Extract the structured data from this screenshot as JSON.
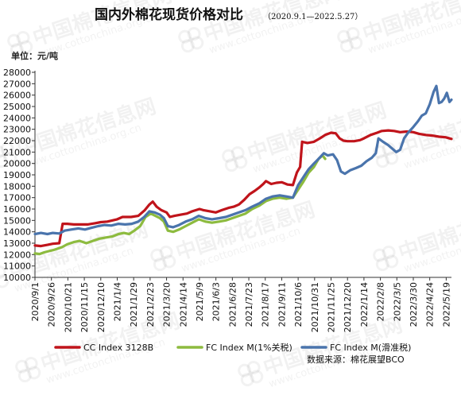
{
  "chart_data": {
    "type": "line",
    "title": "国内外棉花现货价格对比",
    "subtitle": "（2020.9.1—2022.5.27）",
    "ylabel": "单位：元/吨",
    "ylim": [
      10000,
      28000
    ],
    "ytick_step": 1000,
    "xlim": [
      "2020-09-01",
      "2022-05-27"
    ],
    "grid": false,
    "legend_position": "bottom",
    "source": "数据来源：棉花展望BCO",
    "watermark": {
      "brand": "中国棉花信息网",
      "url": "www.cottonchina.org.cn"
    },
    "x_tick_labels": [
      "2020/9/1",
      "2020/9/26",
      "2020/10/21",
      "2020/11/15",
      "2020/12/10",
      "2021/1/4",
      "2021/1/29",
      "2021/2/23",
      "2021/3/20",
      "2021/4/14",
      "2021/5/9",
      "2021/6/3",
      "2021/6/28",
      "2021/7/23",
      "2021/8/17",
      "2021/9/11",
      "2021/10/6",
      "2021/10/31",
      "2021/11/25",
      "2021/12/20",
      "2022/1/14",
      "2022/2/8",
      "2022/3/5",
      "2022/3/30",
      "2022/4/24",
      "2022/5/19"
    ],
    "x_tick_dates": [
      "2020-09-01",
      "2020-09-26",
      "2020-10-21",
      "2020-11-15",
      "2020-12-10",
      "2021-01-04",
      "2021-01-29",
      "2021-02-23",
      "2021-03-20",
      "2021-04-14",
      "2021-05-09",
      "2021-06-03",
      "2021-06-28",
      "2021-07-23",
      "2021-08-17",
      "2021-09-11",
      "2021-10-06",
      "2021-10-31",
      "2021-11-25",
      "2021-12-20",
      "2022-01-14",
      "2022-02-08",
      "2022-03-05",
      "2022-03-30",
      "2022-04-24",
      "2022-05-19"
    ],
    "series": [
      {
        "name": "CC Index 3128B",
        "color": "#c0141b",
        "points": [
          [
            "2020-09-01",
            12800
          ],
          [
            "2020-09-10",
            12750
          ],
          [
            "2020-09-20",
            12850
          ],
          [
            "2020-09-28",
            12950
          ],
          [
            "2020-10-08",
            13000
          ],
          [
            "2020-10-13",
            14700
          ],
          [
            "2020-10-20",
            14700
          ],
          [
            "2020-10-30",
            14650
          ],
          [
            "2020-11-10",
            14650
          ],
          [
            "2020-11-20",
            14650
          ],
          [
            "2020-12-01",
            14750
          ],
          [
            "2020-12-10",
            14850
          ],
          [
            "2020-12-20",
            14900
          ],
          [
            "2021-01-04",
            15100
          ],
          [
            "2021-01-12",
            15300
          ],
          [
            "2021-01-25",
            15300
          ],
          [
            "2021-02-05",
            15400
          ],
          [
            "2021-02-15",
            15900
          ],
          [
            "2021-02-22",
            16400
          ],
          [
            "2021-02-27",
            16650
          ],
          [
            "2021-03-05",
            16200
          ],
          [
            "2021-03-12",
            15900
          ],
          [
            "2021-03-20",
            15700
          ],
          [
            "2021-03-25",
            15300
          ],
          [
            "2021-04-01",
            15400
          ],
          [
            "2021-04-10",
            15500
          ],
          [
            "2021-04-20",
            15600
          ],
          [
            "2021-04-28",
            15800
          ],
          [
            "2021-05-09",
            16000
          ],
          [
            "2021-05-15",
            15900
          ],
          [
            "2021-05-25",
            15800
          ],
          [
            "2021-06-03",
            15700
          ],
          [
            "2021-06-12",
            15900
          ],
          [
            "2021-06-22",
            16100
          ],
          [
            "2021-06-30",
            16200
          ],
          [
            "2021-07-08",
            16400
          ],
          [
            "2021-07-16",
            16800
          ],
          [
            "2021-07-24",
            17300
          ],
          [
            "2021-08-01",
            17600
          ],
          [
            "2021-08-08",
            17900
          ],
          [
            "2021-08-14",
            18200
          ],
          [
            "2021-08-18",
            18450
          ],
          [
            "2021-08-26",
            18200
          ],
          [
            "2021-09-03",
            18300
          ],
          [
            "2021-09-11",
            18350
          ],
          [
            "2021-09-20",
            18150
          ],
          [
            "2021-09-28",
            18100
          ],
          [
            "2021-10-04",
            19200
          ],
          [
            "2021-10-09",
            19700
          ],
          [
            "2021-10-12",
            21900
          ],
          [
            "2021-10-20",
            21800
          ],
          [
            "2021-10-30",
            21900
          ],
          [
            "2021-11-08",
            22200
          ],
          [
            "2021-11-16",
            22500
          ],
          [
            "2021-11-25",
            22700
          ],
          [
            "2021-12-02",
            22650
          ],
          [
            "2021-12-08",
            22200
          ],
          [
            "2021-12-14",
            22000
          ],
          [
            "2021-12-20",
            21950
          ],
          [
            "2021-12-30",
            21950
          ],
          [
            "2022-01-08",
            22050
          ],
          [
            "2022-01-14",
            22200
          ],
          [
            "2022-01-24",
            22500
          ],
          [
            "2022-02-03",
            22700
          ],
          [
            "2022-02-10",
            22850
          ],
          [
            "2022-02-20",
            22900
          ],
          [
            "2022-03-01",
            22850
          ],
          [
            "2022-03-10",
            22750
          ],
          [
            "2022-03-20",
            22800
          ],
          [
            "2022-03-30",
            22750
          ],
          [
            "2022-04-08",
            22600
          ],
          [
            "2022-04-18",
            22500
          ],
          [
            "2022-04-28",
            22450
          ],
          [
            "2022-05-08",
            22350
          ],
          [
            "2022-05-18",
            22300
          ],
          [
            "2022-05-27",
            22150
          ]
        ]
      },
      {
        "name": "FC Index M(1%关税)",
        "color": "#8dbb3f",
        "points": [
          [
            "2020-09-01",
            12100
          ],
          [
            "2020-09-08",
            12050
          ],
          [
            "2020-09-15",
            12200
          ],
          [
            "2020-09-22",
            12300
          ],
          [
            "2020-09-29",
            12400
          ],
          [
            "2020-10-12",
            12650
          ],
          [
            "2020-10-20",
            12900
          ],
          [
            "2020-10-30",
            13100
          ],
          [
            "2020-11-08",
            13200
          ],
          [
            "2020-11-18",
            13000
          ],
          [
            "2020-11-28",
            13200
          ],
          [
            "2020-12-08",
            13400
          ],
          [
            "2020-12-18",
            13500
          ],
          [
            "2020-12-28",
            13600
          ],
          [
            "2021-01-06",
            13800
          ],
          [
            "2021-01-14",
            13900
          ],
          [
            "2021-01-22",
            13800
          ],
          [
            "2021-01-30",
            14100
          ],
          [
            "2021-02-08",
            14500
          ],
          [
            "2021-02-16",
            15300
          ],
          [
            "2021-02-24",
            15600
          ],
          [
            "2021-03-03",
            15400
          ],
          [
            "2021-03-10",
            15200
          ],
          [
            "2021-03-16",
            14900
          ],
          [
            "2021-03-22",
            14100
          ],
          [
            "2021-03-30",
            14000
          ],
          [
            "2021-04-08",
            14200
          ],
          [
            "2021-04-18",
            14500
          ],
          [
            "2021-04-28",
            14800
          ],
          [
            "2021-05-08",
            15100
          ],
          [
            "2021-05-18",
            14900
          ],
          [
            "2021-05-28",
            14800
          ],
          [
            "2021-06-08",
            14900
          ],
          [
            "2021-06-18",
            15000
          ],
          [
            "2021-06-28",
            15200
          ],
          [
            "2021-07-08",
            15400
          ],
          [
            "2021-07-18",
            15600
          ],
          [
            "2021-07-28",
            16000
          ],
          [
            "2021-08-08",
            16300
          ],
          [
            "2021-08-18",
            16700
          ],
          [
            "2021-08-28",
            16900
          ],
          [
            "2021-09-08",
            17000
          ],
          [
            "2021-09-18",
            16900
          ],
          [
            "2021-09-28",
            17000
          ],
          [
            "2021-10-06",
            17700
          ],
          [
            "2021-10-14",
            18400
          ],
          [
            "2021-10-22",
            19200
          ],
          [
            "2021-10-30",
            19700
          ],
          [
            "2021-11-06",
            20400
          ],
          [
            "2021-11-12",
            20700
          ],
          [
            "2021-11-16",
            20400
          ]
        ]
      },
      {
        "name": "FC Index M(滑准税)",
        "color": "#4a74ac",
        "points": [
          [
            "2020-09-01",
            13800
          ],
          [
            "2020-09-10",
            13900
          ],
          [
            "2020-09-20",
            13800
          ],
          [
            "2020-09-28",
            13900
          ],
          [
            "2020-10-08",
            13850
          ],
          [
            "2020-10-16",
            14100
          ],
          [
            "2020-10-26",
            14200
          ],
          [
            "2020-11-06",
            14300
          ],
          [
            "2020-11-16",
            14200
          ],
          [
            "2020-11-26",
            14350
          ],
          [
            "2020-12-06",
            14500
          ],
          [
            "2020-12-16",
            14600
          ],
          [
            "2020-12-26",
            14550
          ],
          [
            "2021-01-06",
            14700
          ],
          [
            "2021-01-16",
            14650
          ],
          [
            "2021-01-26",
            14700
          ],
          [
            "2021-02-05",
            14900
          ],
          [
            "2021-02-14",
            15300
          ],
          [
            "2021-02-22",
            15800
          ],
          [
            "2021-03-02",
            15700
          ],
          [
            "2021-03-10",
            15500
          ],
          [
            "2021-03-16",
            15200
          ],
          [
            "2021-03-22",
            14500
          ],
          [
            "2021-03-30",
            14400
          ],
          [
            "2021-04-08",
            14600
          ],
          [
            "2021-04-18",
            14900
          ],
          [
            "2021-04-28",
            15100
          ],
          [
            "2021-05-08",
            15400
          ],
          [
            "2021-05-18",
            15200
          ],
          [
            "2021-05-28",
            15100
          ],
          [
            "2021-06-08",
            15200
          ],
          [
            "2021-06-18",
            15300
          ],
          [
            "2021-06-28",
            15500
          ],
          [
            "2021-07-08",
            15700
          ],
          [
            "2021-07-18",
            15900
          ],
          [
            "2021-07-28",
            16200
          ],
          [
            "2021-08-08",
            16500
          ],
          [
            "2021-08-18",
            16900
          ],
          [
            "2021-08-28",
            17100
          ],
          [
            "2021-09-08",
            17200
          ],
          [
            "2021-09-18",
            17100
          ],
          [
            "2021-09-28",
            17000
          ],
          [
            "2021-10-06",
            18100
          ],
          [
            "2021-10-14",
            18800
          ],
          [
            "2021-10-22",
            19500
          ],
          [
            "2021-10-30",
            20000
          ],
          [
            "2021-11-06",
            20400
          ],
          [
            "2021-11-14",
            20900
          ],
          [
            "2021-11-20",
            20700
          ],
          [
            "2021-11-28",
            20800
          ],
          [
            "2021-12-04",
            20300
          ],
          [
            "2021-12-10",
            19300
          ],
          [
            "2021-12-16",
            19100
          ],
          [
            "2021-12-24",
            19400
          ],
          [
            "2022-01-02",
            19600
          ],
          [
            "2022-01-10",
            19800
          ],
          [
            "2022-01-18",
            20200
          ],
          [
            "2022-01-26",
            20500
          ],
          [
            "2022-02-01",
            20900
          ],
          [
            "2022-02-05",
            22200
          ],
          [
            "2022-02-12",
            21900
          ],
          [
            "2022-02-20",
            21600
          ],
          [
            "2022-02-26",
            21300
          ],
          [
            "2022-03-04",
            21000
          ],
          [
            "2022-03-10",
            21200
          ],
          [
            "2022-03-16",
            22200
          ],
          [
            "2022-03-22",
            22700
          ],
          [
            "2022-03-30",
            23200
          ],
          [
            "2022-04-06",
            23700
          ],
          [
            "2022-04-12",
            24200
          ],
          [
            "2022-04-18",
            24400
          ],
          [
            "2022-04-24",
            25200
          ],
          [
            "2022-04-30",
            26300
          ],
          [
            "2022-05-04",
            26800
          ],
          [
            "2022-05-08",
            25300
          ],
          [
            "2022-05-12",
            25400
          ],
          [
            "2022-05-16",
            25700
          ],
          [
            "2022-05-20",
            26200
          ],
          [
            "2022-05-24",
            25400
          ],
          [
            "2022-05-27",
            25600
          ]
        ]
      }
    ]
  }
}
